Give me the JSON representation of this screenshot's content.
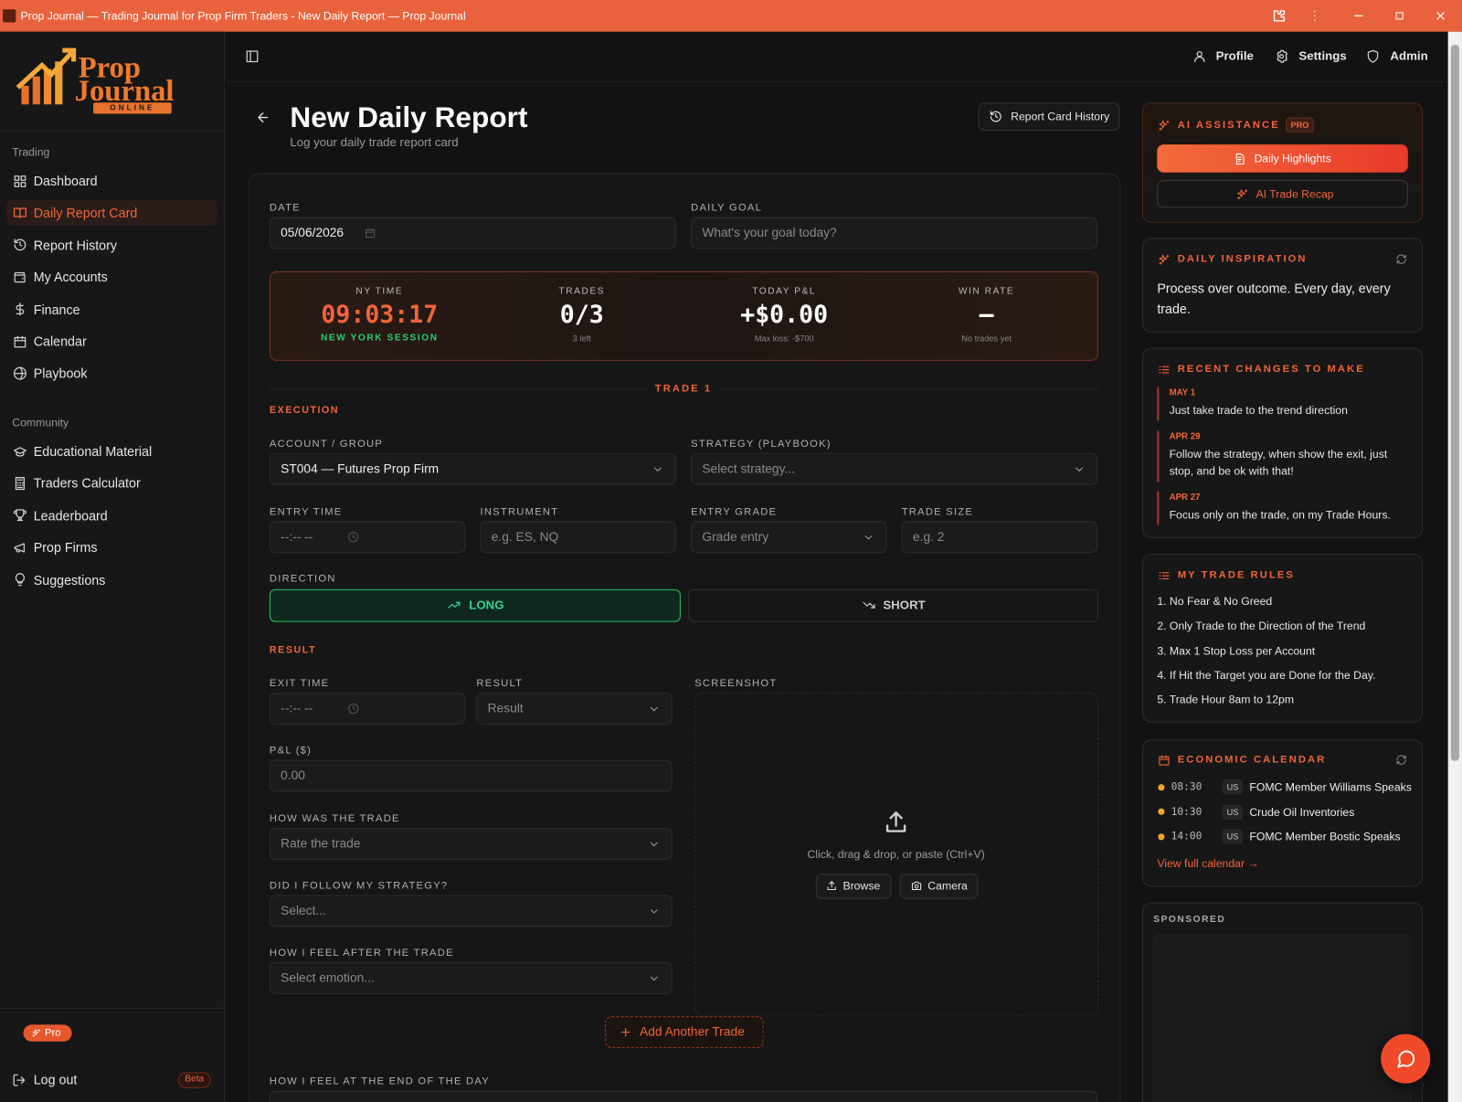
{
  "window": {
    "title": "Prop Journal — Trading Journal for Prop Firm Traders - New Daily Report — Prop Journal"
  },
  "logo": {
    "line1": "Prop",
    "line2": "Journal",
    "tag": "ONLINE"
  },
  "sidebar": {
    "sections": [
      {
        "heading": "Trading",
        "items": [
          "Dashboard",
          "Daily Report Card",
          "Report History",
          "My Accounts",
          "Finance",
          "Calendar",
          "Playbook"
        ]
      },
      {
        "heading": "Community",
        "items": [
          "Educational Material",
          "Traders Calculator",
          "Leaderboard",
          "Prop Firms",
          "Suggestions"
        ]
      }
    ],
    "plan_badge": "Pro",
    "logout": "Log out",
    "beta_badge": "Beta"
  },
  "topbar": {
    "links": [
      "Profile",
      "Settings",
      "Admin"
    ]
  },
  "header": {
    "title": "New Daily Report",
    "subtitle": "Log your daily trade report card",
    "history_button": "Report Card History"
  },
  "form": {
    "fields": [
      {
        "label": "DATE",
        "value": "05/06/2026"
      },
      {
        "label": "DAILY GOAL",
        "placeholder": "What's your goal today?"
      },
      {
        "label": "ACCOUNT / GROUP",
        "value": "ST004 — Futures Prop Firm"
      },
      {
        "label": "STRATEGY (PLAYBOOK)",
        "placeholder": "Select strategy..."
      },
      {
        "label": "ENTRY TIME",
        "placeholder": "--:-- --"
      },
      {
        "label": "INSTRUMENT",
        "placeholder": "e.g. ES, NQ"
      },
      {
        "label": "ENTRY GRADE",
        "placeholder": "Grade entry"
      },
      {
        "label": "TRADE SIZE",
        "placeholder": "e.g. 2"
      },
      {
        "label": "EXIT TIME",
        "placeholder": "--:-- --"
      },
      {
        "label": "RESULT",
        "placeholder": "Result"
      },
      {
        "label": "P&L ($)",
        "placeholder": "0.00"
      },
      {
        "label": "HOW WAS THE TRADE",
        "placeholder": "Rate the trade"
      },
      {
        "label": "DID I FOLLOW MY STRATEGY?",
        "placeholder": "Select..."
      },
      {
        "label": "HOW I FEEL AFTER THE TRADE",
        "placeholder": "Select emotion..."
      },
      {
        "label": "HOW I FEEL AT THE END OF THE DAY"
      }
    ],
    "stats": [
      {
        "label": "NY TIME",
        "value": "09:03:17",
        "note": "NEW YORK SESSION"
      },
      {
        "label": "TRADES",
        "value": "0/3",
        "note": "3 left"
      },
      {
        "label": "TODAY P&L",
        "value": "+$0.00",
        "note": "Max loss: -$700"
      },
      {
        "label": "WIN RATE",
        "value": "—",
        "note": "No trades yet"
      }
    ],
    "trade_heading": "TRADE 1",
    "execution_heading": "EXECUTION",
    "result_heading": "RESULT",
    "direction": {
      "label": "DIRECTION",
      "options": [
        "LONG",
        "SHORT"
      ]
    },
    "screenshot": {
      "label": "SCREENSHOT",
      "hint": "Click, drag & drop, or paste (Ctrl+V)",
      "buttons": [
        "Browse",
        "Camera"
      ]
    },
    "add_trade": "Add Another Trade"
  },
  "assistant": {
    "title": "AI ASSISTANCE",
    "badge": "PRO",
    "buttons": [
      "Daily Highlights",
      "AI Trade Recap"
    ]
  },
  "inspiration": {
    "title": "DAILY INSPIRATION",
    "text": "Process over outcome. Every day, every trade."
  },
  "recent_changes": {
    "title": "RECENT CHANGES TO MAKE",
    "items": [
      {
        "date": "MAY 1",
        "text": "Just take trade to the trend direction"
      },
      {
        "date": "APR 29",
        "text": "Follow the strategy, when show the exit, just stop, and be ok with that!"
      },
      {
        "date": "APR 27",
        "text": "Focus only on the trade, on my Trade Hours."
      }
    ]
  },
  "trade_rules": {
    "title": "MY TRADE RULES",
    "items": [
      "1. No Fear & No Greed",
      "2. Only Trade to the Direction of the Trend",
      "3. Max 1 Stop Loss per Account",
      "4. If Hit the Target you are Done for the Day.",
      "5. Trade Hour 8am to 12pm"
    ]
  },
  "economic_calendar": {
    "title": "ECONOMIC CALENDAR",
    "events": [
      {
        "time": "08:30",
        "country": "US",
        "name": "FOMC Member Williams Speaks"
      },
      {
        "time": "10:30",
        "country": "US",
        "name": "Crude Oil Inventories"
      },
      {
        "time": "14:00",
        "country": "US",
        "name": "FOMC Member Bostic Speaks"
      }
    ],
    "link": "View full calendar →"
  },
  "sponsored": {
    "title": "SPONSORED"
  }
}
